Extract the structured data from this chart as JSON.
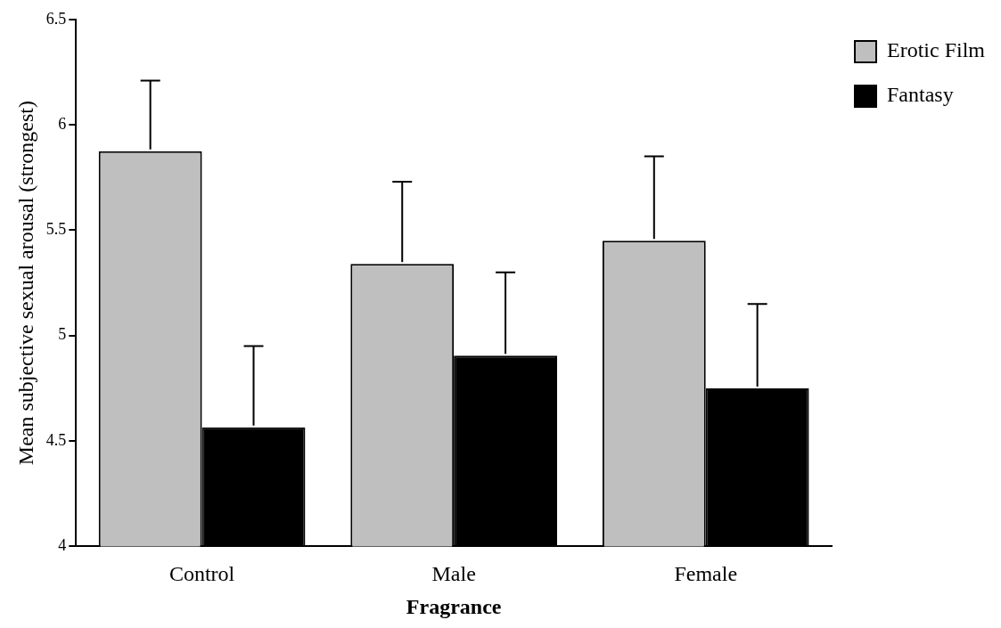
{
  "chart_data": {
    "type": "bar",
    "xlabel": "Fragrance",
    "ylabel": "Mean subjective sexual arousal (strongest)",
    "categories": [
      "Control",
      "Male",
      "Female"
    ],
    "series": [
      {
        "name": "Erotic Film",
        "color": "#bfbfbf",
        "values": [
          5.875,
          5.34,
          5.45
        ],
        "errors": [
          [
            5.875,
            6.21
          ],
          [
            5.34,
            5.73
          ],
          [
            5.45,
            5.85
          ]
        ]
      },
      {
        "name": "Fantasy",
        "color": "#000000",
        "values": [
          4.565,
          4.905,
          4.75
        ],
        "errors": [
          [
            4.565,
            4.95
          ],
          [
            4.905,
            5.3
          ],
          [
            4.75,
            5.15
          ]
        ]
      }
    ],
    "ylim": [
      4,
      6.5
    ],
    "yticks": [
      4,
      4.5,
      5,
      5.5,
      6,
      6.5
    ],
    "grid": false,
    "legend": "top right"
  }
}
